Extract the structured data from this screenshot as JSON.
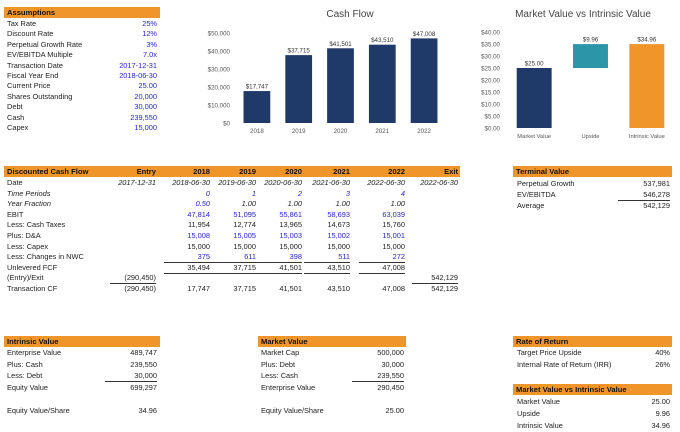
{
  "assumptions": {
    "title": "Assumptions",
    "items": [
      {
        "label": "Tax Rate",
        "value": "25%"
      },
      {
        "label": "Discount Rate",
        "value": "12%"
      },
      {
        "label": "Perpetual Growth Rate",
        "value": "3%"
      },
      {
        "label": "EV/EBITDA Multiple",
        "value": "7.0x"
      },
      {
        "label": "Transaction Date",
        "value": "2017-12-31"
      },
      {
        "label": "Fiscal Year End",
        "value": "2018-06-30"
      },
      {
        "label": "Current Price",
        "value": "25.00"
      },
      {
        "label": "Shares Outstanding",
        "value": "20,000"
      },
      {
        "label": "Debt",
        "value": "30,000"
      },
      {
        "label": "Cash",
        "value": "239,550"
      },
      {
        "label": "Capex",
        "value": "15,000"
      }
    ]
  },
  "chart_data": [
    {
      "type": "bar",
      "title": "Cash Flow",
      "categories": [
        "2018",
        "2019",
        "2020",
        "2021",
        "2022"
      ],
      "values": [
        17747,
        37715,
        41501,
        43510,
        47008
      ],
      "data_labels": [
        "$17,747",
        "$37,715",
        "$41,501",
        "$43,510",
        "$47,008"
      ],
      "y_ticks": [
        "$0",
        "$10,000",
        "$20,000",
        "$30,000",
        "$40,000",
        "$50,000"
      ],
      "ylim": [
        0,
        50000
      ],
      "color": "#1f3a68"
    },
    {
      "type": "bar",
      "title": "Market Value vs Intrinsic Value",
      "categories": [
        "Market Value",
        "Upside",
        "Intrinsic Value"
      ],
      "values": [
        25.0,
        9.96,
        34.96
      ],
      "bases": [
        0,
        25.0,
        0
      ],
      "data_labels": [
        "$25.00",
        "$9.96",
        "$34.96"
      ],
      "colors": [
        "#1f3a68",
        "#2d95a8",
        "#f0952a"
      ],
      "y_ticks": [
        "$0.00",
        "$5.00",
        "$10.00",
        "$15.00",
        "$20.00",
        "$25.00",
        "$30.00",
        "$35.00",
        "$40.00"
      ],
      "ylim": [
        0,
        40
      ]
    }
  ],
  "dcf": {
    "title": "Discounted Cash Flow",
    "col_headers": [
      "Entry",
      "2018",
      "2019",
      "2020",
      "2021",
      "2022",
      "Exit"
    ],
    "rows": [
      {
        "label": "Date",
        "cells": [
          "2017-12-31",
          "2018-06-30",
          "2019-06-30",
          "2020-06-30",
          "2021-06-30",
          "2022-06-30",
          "2022-06-30"
        ],
        "style": "ital-vals"
      },
      {
        "label": "Time Periods",
        "cells": [
          "",
          "0",
          "1",
          "2",
          "3",
          "4",
          ""
        ],
        "style": "ital"
      },
      {
        "label": "Year Fraction",
        "cells": [
          "",
          "0.50",
          "1.00",
          "1.00",
          "1.00",
          "1.00",
          ""
        ],
        "style": "ital"
      },
      {
        "label": "EBIT",
        "cells": [
          "",
          "47,814",
          "51,095",
          "55,861",
          "58,693",
          "63,039",
          ""
        ],
        "style": "blue"
      },
      {
        "label": "Less: Cash Taxes",
        "cells": [
          "",
          "11,954",
          "12,774",
          "13,965",
          "14,673",
          "15,760",
          ""
        ],
        "style": ""
      },
      {
        "label": "Plus: D&A",
        "cells": [
          "",
          "15,008",
          "15,005",
          "15,003",
          "15,002",
          "15,001",
          ""
        ],
        "style": "blue"
      },
      {
        "label": "Less: Capex",
        "cells": [
          "",
          "15,000",
          "15,000",
          "15,000",
          "15,000",
          "15,000",
          ""
        ],
        "style": ""
      },
      {
        "label": "Less: Changes in NWC",
        "cells": [
          "",
          "375",
          "611",
          "398",
          "511",
          "272",
          ""
        ],
        "style": "blue-uline"
      },
      {
        "label": "Unlevered FCF",
        "cells": [
          "",
          "35,494",
          "37,715",
          "41,501",
          "43,510",
          "47,008",
          ""
        ],
        "style": ""
      },
      {
        "label": "(Entry)/Exit",
        "cells": [
          "(290,450)",
          "",
          "",
          "",
          "",
          "",
          "542,129"
        ],
        "style": "uline-all"
      },
      {
        "label": "Transaction CF",
        "cells": [
          "(290,450)",
          "17,747",
          "37,715",
          "41,501",
          "43,510",
          "47,008",
          "542,129"
        ],
        "style": ""
      }
    ]
  },
  "terminal": {
    "title": "Terminal Value",
    "items": [
      {
        "label": "Perpetual Growth",
        "value": "537,981"
      },
      {
        "label": "EV/EBITDA",
        "value": "546,278"
      },
      {
        "label": "Average",
        "value": "542,129"
      }
    ]
  },
  "intrinsic": {
    "title": "Intrinsic Value",
    "items": [
      {
        "label": "Enterprise Value",
        "value": "489,747"
      },
      {
        "label": "Plus: Cash",
        "value": "239,550"
      },
      {
        "label": "Less: Debt",
        "value": "30,000"
      },
      {
        "label": "Equity Value",
        "value": "699,297"
      },
      {
        "label": "",
        "value": ""
      },
      {
        "label": "Equity Value/Share",
        "value": "34.96"
      }
    ]
  },
  "market": {
    "title": "Market Value",
    "items": [
      {
        "label": "Market Cap",
        "value": "500,000"
      },
      {
        "label": "Plus: Debt",
        "value": "30,000"
      },
      {
        "label": "Less: Cash",
        "value": "239,550"
      },
      {
        "label": "Enterprise Value",
        "value": "290,450"
      },
      {
        "label": "",
        "value": ""
      },
      {
        "label": "Equity Value/Share",
        "value": "25.00"
      }
    ]
  },
  "ror": {
    "title": "Rate of Return",
    "items": [
      {
        "label": "Target Price Upside",
        "value": "40%"
      },
      {
        "label": "Internal Rate of Return (IRR)",
        "value": "26%"
      }
    ]
  },
  "mviv": {
    "title": "Market Value vs Intrinsic Value",
    "items": [
      {
        "label": "Market Value",
        "value": "25.00"
      },
      {
        "label": "Upside",
        "value": "9.96"
      },
      {
        "label": "Intrinsic Value",
        "value": "34.96"
      }
    ]
  }
}
